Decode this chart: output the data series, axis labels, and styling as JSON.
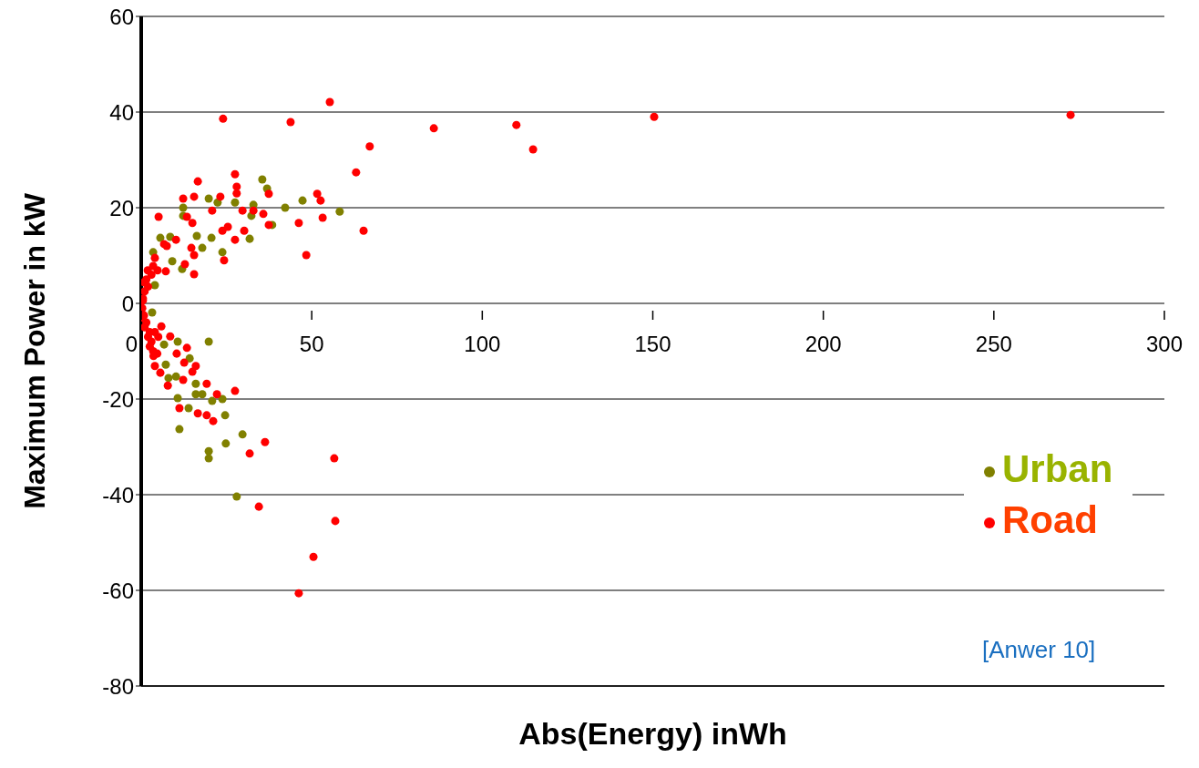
{
  "chart_data": {
    "type": "scatter",
    "xlabel": "Abs(Energy) inWh",
    "ylabel": "Maximum Power in kW",
    "xlim": [
      0,
      300
    ],
    "xticks": [
      0,
      50,
      100,
      150,
      200,
      250,
      300
    ],
    "ylim": [
      -80,
      60
    ],
    "yticks": [
      -80,
      -60,
      -40,
      -20,
      0,
      20,
      40,
      60
    ],
    "grid": "y",
    "legend": "bottom right",
    "marker": "circle",
    "annotations": [
      "[Anwer 10]"
    ],
    "series": [
      {
        "name": "Urban",
        "color": "#808000",
        "x": [
          35.5,
          36.9,
          19.8,
          22.4,
          27.5,
          32.9,
          32.3,
          42.2,
          47.3,
          58.2,
          38.4,
          31.8,
          20.6,
          17.9,
          23.8,
          12.3,
          12.3,
          5.6,
          8.5,
          16.3,
          9.1,
          12,
          3.5,
          4,
          3.2,
          19.8,
          11.2,
          19.8,
          19.8,
          24.8,
          29.7,
          24.6,
          23.8,
          20.8,
          16,
          17.9,
          10.7,
          13.9,
          16,
          10.2,
          8,
          7.2,
          14.2,
          12.6,
          10.7,
          6.7,
          28
        ],
        "values": [
          25.9,
          24,
          21.9,
          21.1,
          21.1,
          20.6,
          18.3,
          20,
          21.5,
          19.2,
          16.4,
          13.5,
          13.7,
          11.6,
          10.7,
          20,
          18.3,
          13.7,
          13.9,
          14.1,
          8.8,
          7.2,
          10.7,
          3.8,
          -1.9,
          -8,
          -26.3,
          -30.9,
          -32.4,
          -29.3,
          -27.4,
          -23.4,
          -20,
          -20.4,
          -19,
          -19,
          -19.8,
          -21.9,
          -16.8,
          -15.3,
          -15.6,
          -12.8,
          -11.5,
          null,
          -8,
          -8.6,
          -40.4
        ]
      },
      {
        "name": "Road",
        "color": "#ff0000",
        "x": [
          63,
          65.2,
          48.4,
          53.2,
          51.6,
          52.6,
          46.2,
          37.4,
          37.4,
          35.8,
          32.9,
          29.7,
          27.5,
          28,
          28,
          23.2,
          20.8,
          16.6,
          15.5,
          12.3,
          5.1,
          13.4,
          15,
          23.8,
          25.4,
          30.2,
          27.5,
          24.3,
          15.5,
          12.8,
          14.7,
          15.5,
          10.2,
          7.5,
          6.7,
          4,
          3.5,
          7.2,
          4.8,
          1.9,
          0.8,
          0.5,
          24,
          43.8,
          55.3,
          67,
          85.8,
          110,
          114.9,
          150.4,
          272.5,
          13.4,
          8.5,
          5.9,
          10.4,
          12.6,
          16,
          15,
          4,
          5.6,
          12.3,
          7.8,
          19.2,
          22.2,
          27.5,
          11.2,
          16.6,
          19.2,
          21.1,
          36.3,
          31.8,
          56.6,
          4.7,
          3.6,
          34.5,
          56.9,
          50.5,
          46.2,
          0.5,
          1,
          0.3,
          0.8,
          1.5,
          2,
          1.5,
          2.5,
          3,
          2,
          3,
          2.5,
          1,
          0.5,
          4,
          5,
          3.5
        ],
        "values": [
          27.4,
          15.2,
          10.1,
          17.9,
          22.9,
          21.5,
          16.8,
          22.9,
          16.4,
          18.7,
          19.4,
          19.4,
          27,
          24.4,
          23,
          22.3,
          19.4,
          25.5,
          22.3,
          21.9,
          18.1,
          18.1,
          16.8,
          15.2,
          16,
          15.2,
          13.3,
          9,
          6.1,
          8.2,
          11.6,
          10.1,
          13.3,
          12,
          12.4,
          9.5,
          7.8,
          6.7,
          6.9,
          6.9,
          4.4,
          0.6,
          38.6,
          37.9,
          42.1,
          32.8,
          36.6,
          37.3,
          32.2,
          39,
          39.4,
          -9.3,
          -6.9,
          -4.8,
          -10.5,
          -12.4,
          -13.1,
          -14.3,
          -13.1,
          -14.5,
          -16,
          -17.2,
          -16.8,
          -19,
          -18.3,
          -21.9,
          -23,
          -23.4,
          -24.6,
          -29,
          -31.4,
          -32.4,
          -10.5,
          -11,
          -42.5,
          -45.5,
          -53,
          -60.6,
          1,
          2.5,
          -1,
          -2.5,
          -4,
          3.5,
          5,
          -6,
          -8,
          -7,
          6,
          -9,
          -5,
          -3,
          -6,
          -7,
          -10
        ]
      }
    ]
  }
}
